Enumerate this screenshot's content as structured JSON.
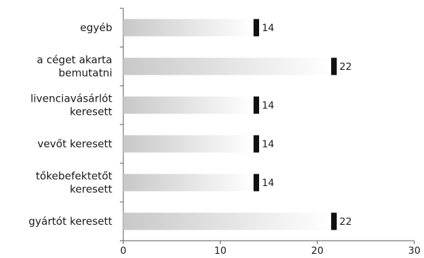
{
  "chart_data": {
    "type": "bar",
    "orientation": "horizontal",
    "categories": [
      "egyéb",
      "a céget akarta bemutatni",
      "livenciavásárlót keresett",
      "vevőt keresett",
      "tőkebefektetőt keresett",
      "gyártót keresett"
    ],
    "category_lines": [
      [
        "egyéb"
      ],
      [
        "a céget akarta",
        "bemutatni"
      ],
      [
        "livenciavásárlót",
        "keresett"
      ],
      [
        "vevőt keresett"
      ],
      [
        "tőkebefektetőt",
        "keresett"
      ],
      [
        "gyártót keresett"
      ]
    ],
    "values": [
      14,
      22,
      14,
      14,
      14,
      22
    ],
    "value_labels": [
      "14",
      "22",
      "14",
      "14",
      "14",
      "22"
    ],
    "xlim": [
      0,
      30
    ],
    "xticks": [
      0,
      10,
      20,
      30
    ],
    "xtick_labels": [
      "0",
      "10",
      "20",
      "30"
    ],
    "title": "",
    "xlabel": "",
    "ylabel": "",
    "grid": false,
    "legend": "none",
    "colors": {
      "bar_gradient_start": "#c8c8c8",
      "bar_gradient_end": "#ffffff",
      "bar_cap": "#111111",
      "axis": "#555555",
      "text": "#1a1a1a"
    }
  }
}
